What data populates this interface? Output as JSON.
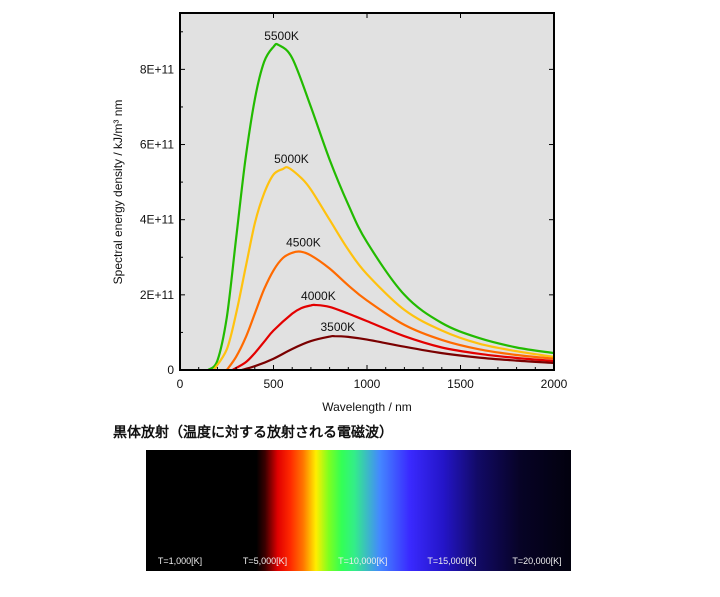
{
  "chart_data": {
    "type": "line",
    "xlabel": "Wavelength / nm",
    "ylabel": "Spectral energy density / kJ/m³ nm",
    "xlim": [
      0,
      2000
    ],
    "ylim": [
      0,
      950000000000.0
    ],
    "xticks": [
      0,
      500,
      1000,
      1500,
      2000
    ],
    "xtick_labels": [
      "0",
      "500",
      "1000",
      "1500",
      "2000"
    ],
    "yticks": [
      0,
      200000000000.0,
      400000000000.0,
      600000000000.0,
      800000000000.0
    ],
    "ytick_labels": [
      "0",
      "2E+11",
      "4E+11",
      "6E+11",
      "8E+11"
    ],
    "background": "#e1e1e1",
    "grid": false,
    "series": [
      {
        "name": "5500K",
        "color": "#22bb00",
        "x": [
          150,
          200,
          250,
          300,
          350,
          400,
          450,
          500,
          527,
          600,
          700,
          800,
          900,
          1000,
          1200,
          1400,
          1600,
          1800,
          2000
        ],
        "y": [
          0,
          25000000000.0,
          140000000000.0,
          350000000000.0,
          560000000000.0,
          720000000000.0,
          820000000000.0,
          860000000000.0,
          865000000000.0,
          830000000000.0,
          700000000000.0,
          560000000000.0,
          440000000000.0,
          340000000000.0,
          200000000000.0,
          125000000000.0,
          85000000000.0,
          60000000000.0,
          45000000000.0
        ]
      },
      {
        "name": "5000K",
        "color": "#ffc20e",
        "x": [
          180,
          250,
          300,
          350,
          400,
          450,
          500,
          550,
          580,
          650,
          700,
          800,
          900,
          1000,
          1200,
          1400,
          1600,
          1800,
          2000
        ],
        "y": [
          0,
          55000000000.0,
          150000000000.0,
          270000000000.0,
          390000000000.0,
          470000000000.0,
          520000000000.0,
          535000000000.0,
          538000000000.0,
          510000000000.0,
          480000000000.0,
          400000000000.0,
          320000000000.0,
          255000000000.0,
          160000000000.0,
          105000000000.0,
          70000000000.0,
          50000000000.0,
          35000000000.0
        ]
      },
      {
        "name": "4500K",
        "color": "#ff6a00",
        "x": [
          250,
          300,
          350,
          400,
          450,
          500,
          550,
          600,
          644,
          700,
          800,
          900,
          1000,
          1200,
          1400,
          1600,
          1800,
          2000
        ],
        "y": [
          0,
          35000000000.0,
          85000000000.0,
          150000000000.0,
          215000000000.0,
          265000000000.0,
          298000000000.0,
          312000000000.0,
          315000000000.0,
          305000000000.0,
          270000000000.0,
          225000000000.0,
          185000000000.0,
          120000000000.0,
          80000000000.0,
          55000000000.0,
          40000000000.0,
          30000000000.0
        ]
      },
      {
        "name": "4000K",
        "color": "#e30000",
        "x": [
          280,
          350,
          400,
          450,
          500,
          600,
          650,
          700,
          724,
          800,
          900,
          1000,
          1200,
          1400,
          1600,
          1800,
          2000
        ],
        "y": [
          0,
          20000000000.0,
          45000000000.0,
          75000000000.0,
          105000000000.0,
          150000000000.0,
          165000000000.0,
          172000000000.0,
          173000000000.0,
          168000000000.0,
          150000000000.0,
          130000000000.0,
          90000000000.0,
          60000000000.0,
          43000000000.0,
          32000000000.0,
          24000000000.0
        ]
      },
      {
        "name": "3500K",
        "color": "#7a0000",
        "x": [
          330,
          400,
          500,
          600,
          700,
          800,
          828,
          900,
          1000,
          1200,
          1400,
          1600,
          1800,
          2000
        ],
        "y": [
          0,
          10000000000.0,
          30000000000.0,
          56000000000.0,
          77000000000.0,
          89000000000.0,
          90000000000.0,
          88000000000.0,
          81000000000.0,
          62000000000.0,
          45000000000.0,
          33000000000.0,
          25000000000.0,
          19000000000.0
        ]
      }
    ],
    "annotations": [
      {
        "text": "5500K",
        "x": 527,
        "y": 865000000000.0
      },
      {
        "text": "5000K",
        "x": 580,
        "y": 538000000000.0
      },
      {
        "text": "4500K",
        "x": 644,
        "y": 315000000000.0
      },
      {
        "text": "4000K",
        "x": 724,
        "y": 173000000000.0
      },
      {
        "text": "3500K",
        "x": 828,
        "y": 90000000000.0
      }
    ]
  },
  "spectrum": {
    "title": "黒体放射（温度に対する放射される電磁波）",
    "temperature_labels": [
      {
        "text": "T=1,000[K]",
        "position": 0.08
      },
      {
        "text": "T=5,000[K]",
        "position": 0.28
      },
      {
        "text": "T=10,000[K]",
        "position": 0.51
      },
      {
        "text": "T=15,000[K]",
        "position": 0.72
      },
      {
        "text": "T=20,000[K]",
        "position": 0.92
      }
    ]
  }
}
